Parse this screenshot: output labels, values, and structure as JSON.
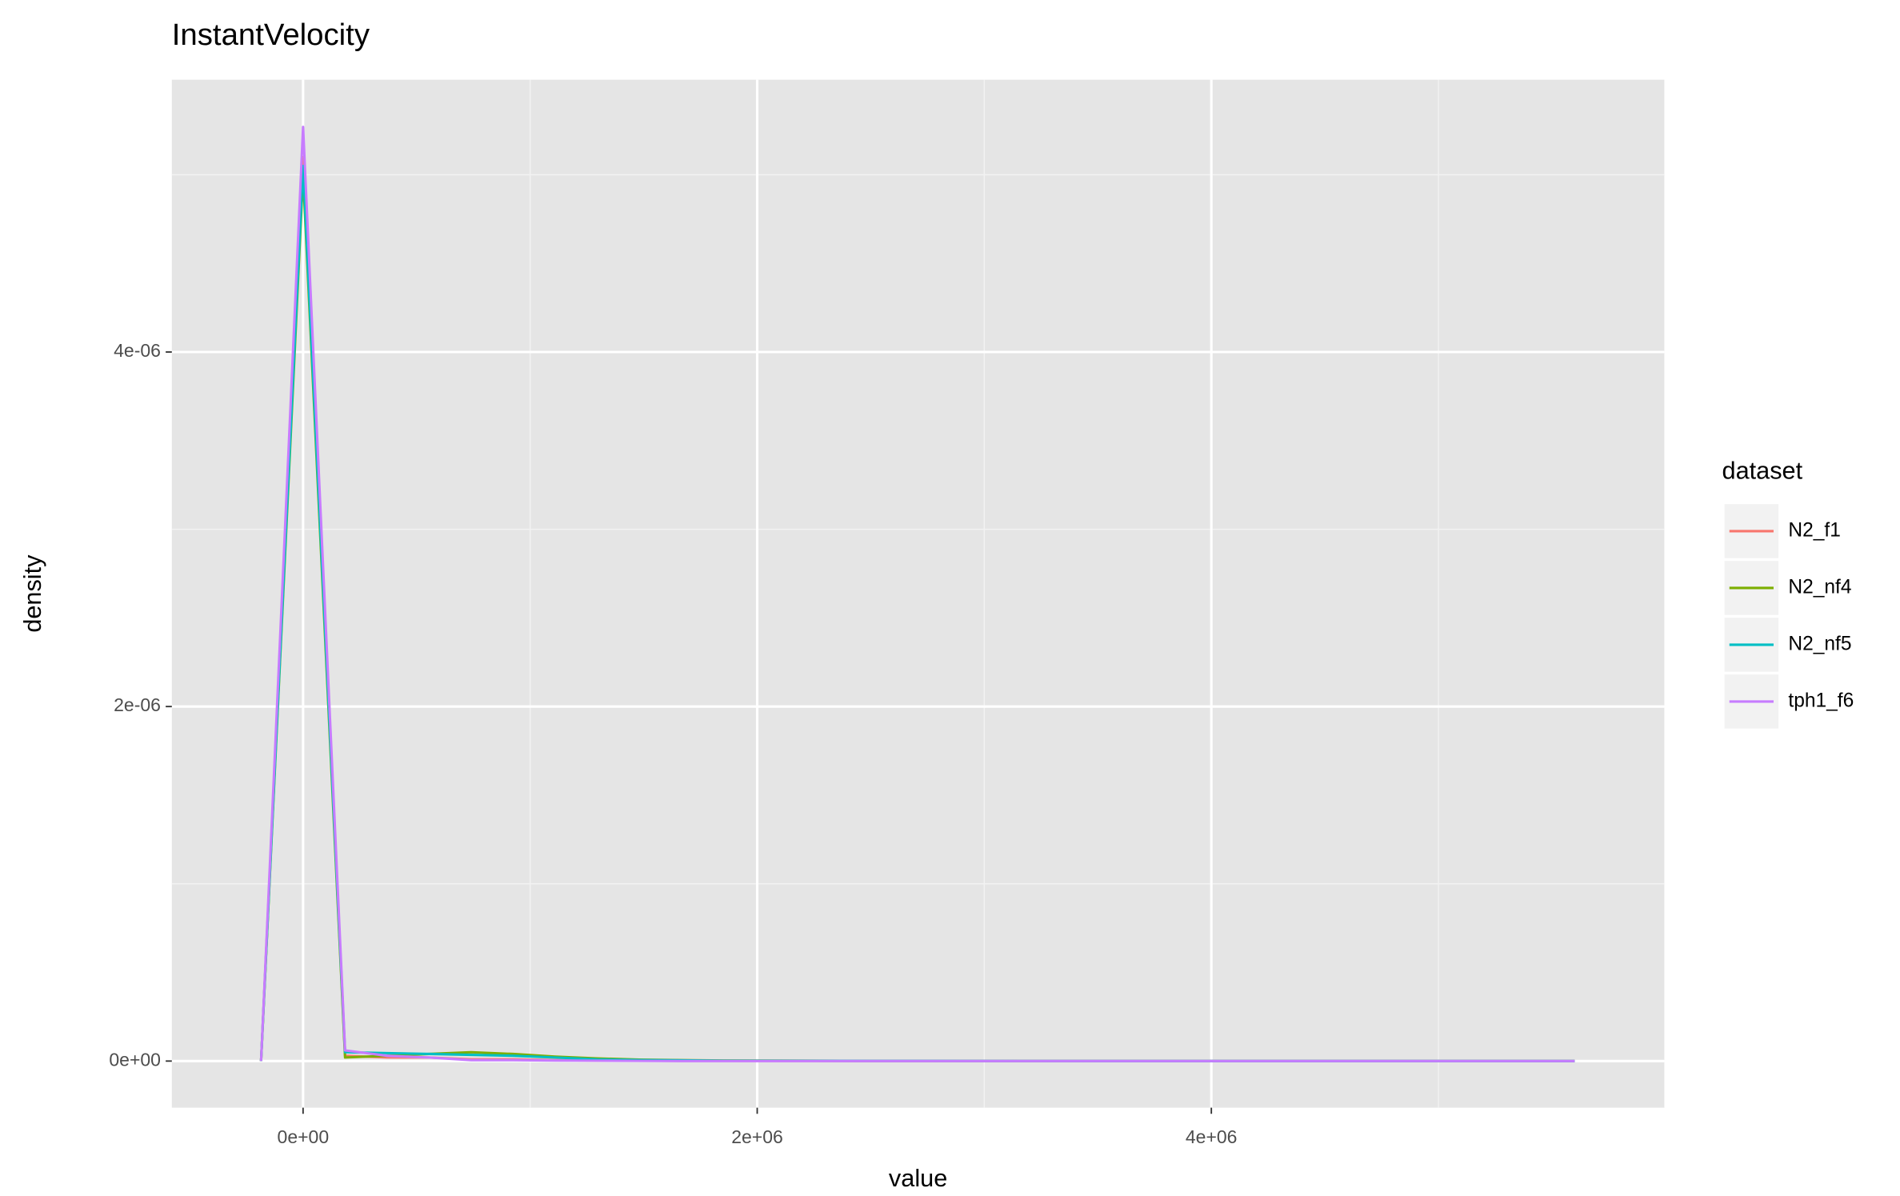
{
  "chart_data": {
    "type": "line",
    "title": "InstantVelocity",
    "xlabel": "value",
    "ylabel": "density",
    "legend_title": "dataset",
    "legend_position": "right",
    "grid": true,
    "x": [
      -185000,
      0,
      185000,
      370000,
      555000,
      740000,
      925000,
      1110000,
      1295000,
      1480000,
      1665000,
      1850000,
      2500000,
      3500000,
      4500000,
      5600000
    ],
    "series": [
      {
        "name": "N2_f1",
        "color": "#F8766D",
        "values": [
          0,
          5.1e-06,
          3e-08,
          2e-08,
          2e-08,
          1e-08,
          1e-08,
          5e-09,
          3e-09,
          2e-09,
          1e-09,
          1e-09,
          0,
          0,
          0,
          0
        ]
      },
      {
        "name": "N2_nf4",
        "color": "#7CAE00",
        "values": [
          0,
          5e-06,
          2e-08,
          3e-08,
          4e-08,
          5e-08,
          4e-08,
          2.5e-08,
          1.5e-08,
          8e-09,
          5e-09,
          3e-09,
          1e-09,
          0,
          0,
          0
        ]
      },
      {
        "name": "N2_nf5",
        "color": "#00BFC4",
        "values": [
          0,
          5.05e-06,
          5e-08,
          4.5e-08,
          4e-08,
          3.5e-08,
          3e-08,
          2e-08,
          1e-08,
          6e-09,
          4e-09,
          2e-09,
          1e-09,
          0,
          0,
          0
        ]
      },
      {
        "name": "tph1_f6",
        "color": "#C77CFF",
        "values": [
          0,
          5.27e-06,
          6e-08,
          3e-08,
          2e-08,
          5e-09,
          5e-09,
          3e-09,
          2e-09,
          1e-09,
          0,
          0,
          0,
          0,
          0,
          0
        ]
      }
    ],
    "xlim": [
      -578000,
      5995000
    ],
    "ylim": [
      -2.63e-07,
      5.536e-06
    ],
    "xticks": [
      {
        "value": 0,
        "label": "0e+00"
      },
      {
        "value": 2000000,
        "label": "2e+06"
      },
      {
        "value": 4000000,
        "label": "4e+06"
      }
    ],
    "yticks": [
      {
        "value": 0,
        "label": "0e+00"
      },
      {
        "value": 2e-06,
        "label": "2e-06"
      },
      {
        "value": 4e-06,
        "label": "4e-06"
      }
    ],
    "x_minor_grid": [
      1000000,
      3000000,
      5000000
    ],
    "y_minor_grid": [
      1e-06,
      3e-06,
      5e-06
    ]
  }
}
